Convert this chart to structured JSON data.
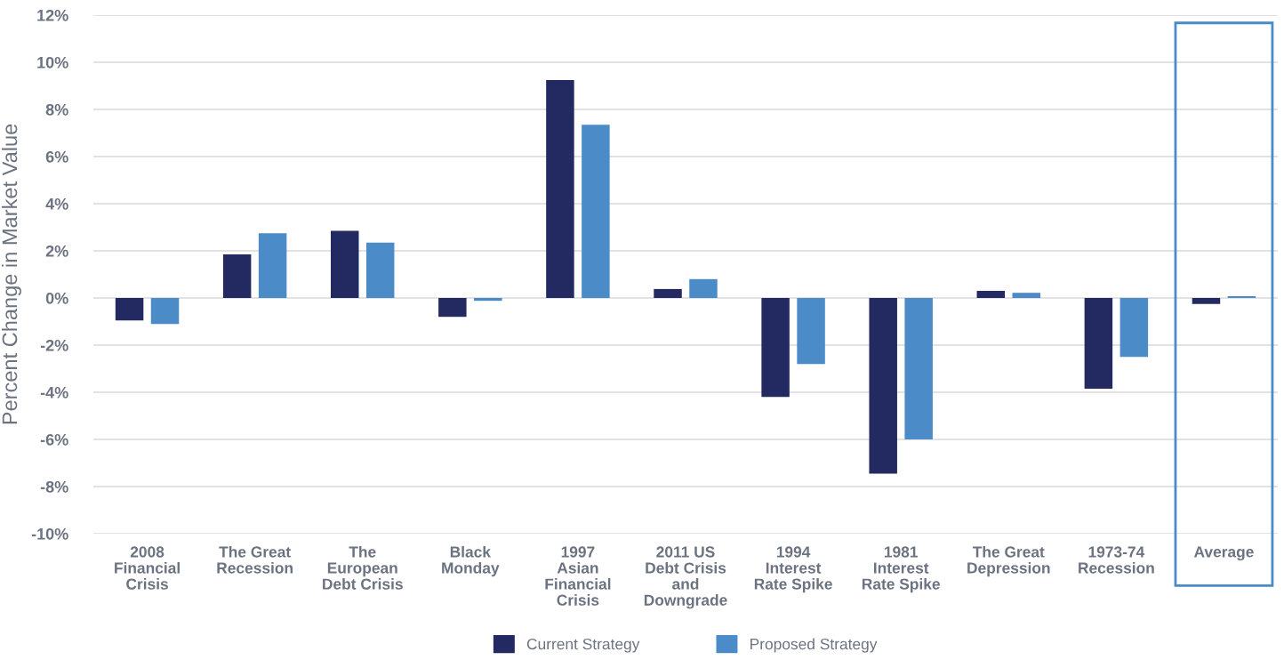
{
  "chart_data": {
    "type": "bar",
    "ylabel": "Percent Change in Market Value",
    "categories": [
      "2008\nFinancial\nCrisis",
      "The Great\nRecession",
      "The\nEuropean\nDebt Crisis",
      "Black\nMonday",
      "1997\nAsian\nFinancial\nCrisis",
      "2011 US\nDebt Crisis\nand\nDowngrade",
      "1994\nInterest\nRate Spike",
      "1981\nInterest\nRate Spike",
      "The Great\nDepression",
      "1973-74\nRecession",
      "Average"
    ],
    "series": [
      {
        "name": "Current Strategy",
        "color": "#232a62",
        "values": [
          -0.95,
          1.85,
          2.85,
          -0.8,
          9.25,
          0.38,
          -4.2,
          -7.45,
          0.3,
          -3.85,
          -0.25
        ]
      },
      {
        "name": "Proposed Strategy",
        "color": "#4a8bc8",
        "values": [
          -1.1,
          2.75,
          2.35,
          -0.12,
          7.35,
          0.8,
          -2.8,
          -6.0,
          0.22,
          -2.5,
          0.08
        ]
      }
    ],
    "ylim": [
      -10,
      12
    ],
    "yticks": [
      {
        "value": -10,
        "label": "-10%"
      },
      {
        "value": -8,
        "label": "-8%"
      },
      {
        "value": -6,
        "label": "-6%"
      },
      {
        "value": -4,
        "label": "-4%"
      },
      {
        "value": -2,
        "label": "-2%"
      },
      {
        "value": 0,
        "label": "0%"
      },
      {
        "value": 2,
        "label": "2%"
      },
      {
        "value": 4,
        "label": "4%"
      },
      {
        "value": 6,
        "label": "6%"
      },
      {
        "value": 8,
        "label": "8%"
      },
      {
        "value": 10,
        "label": "10%"
      },
      {
        "value": 12,
        "label": "12%"
      }
    ],
    "grid": "y",
    "legend": "bottom"
  }
}
